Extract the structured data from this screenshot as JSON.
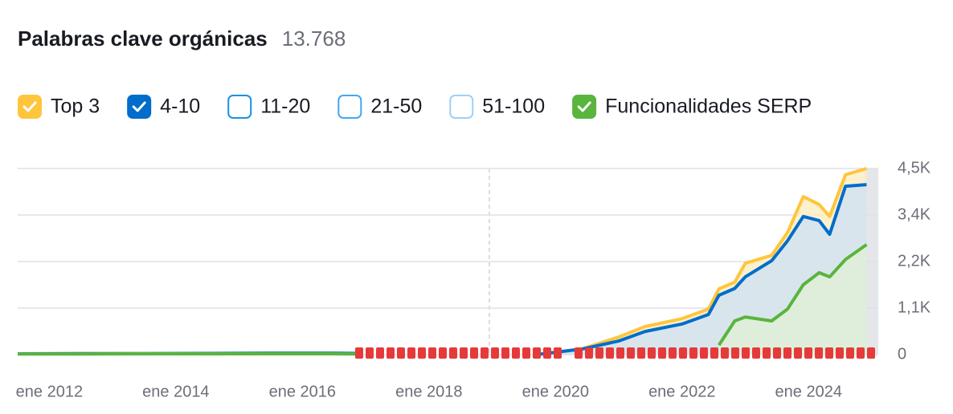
{
  "chart_data": {
    "type": "area",
    "title": "Palabras clave orgánicas",
    "subtitle": "13.768",
    "x": [
      "2011-07",
      "2012-07",
      "2013-07",
      "2014-07",
      "2015-07",
      "2016-07",
      "2016-12",
      "2017-06",
      "2019-10",
      "2020-06",
      "2021-01",
      "2021-06",
      "2022-01",
      "2022-06",
      "2022-08",
      "2022-11",
      "2023-01",
      "2023-06",
      "2023-09",
      "2023-12",
      "2024-03",
      "2024-05",
      "2024-08",
      "2024-12"
    ],
    "series": [
      {
        "name": "Top 3",
        "color": "#ffc53d",
        "checked": true,
        "values": [
          20,
          25,
          25,
          30,
          35,
          35,
          30,
          null,
          10,
          135,
          427,
          680,
          870,
          1100,
          1590,
          1750,
          2210,
          2400,
          2950,
          3820,
          3630,
          3340,
          4350,
          4500
        ]
      },
      {
        "name": "4-10",
        "color": "#006dca",
        "checked": true,
        "values": [
          20,
          25,
          25,
          30,
          35,
          35,
          30,
          null,
          10,
          135,
          330,
          560,
          740,
          970,
          1435,
          1600,
          1880,
          2270,
          2750,
          3340,
          3240,
          2910,
          4070,
          4110
        ]
      },
      {
        "name": "11-20",
        "color": "#1d8fe3",
        "checked": false
      },
      {
        "name": "21-50",
        "color": "#45a6f0",
        "checked": false
      },
      {
        "name": "51-100",
        "color": "#9fd0f7",
        "checked": false
      },
      {
        "name": "Funcionalidades SERP",
        "color": "#59b53d",
        "checked": true,
        "values": [
          15,
          15,
          20,
          20,
          20,
          20,
          15,
          null,
          null,
          null,
          null,
          null,
          null,
          null,
          230,
          815,
          910,
          815,
          1100,
          1690,
          1980,
          1880,
          2300,
          2660
        ]
      }
    ],
    "xlim": [
      "2011-07",
      "2025-01"
    ],
    "xticks": [
      {
        "value": "2012-01",
        "label": "ene 2012"
      },
      {
        "value": "2014-01",
        "label": "ene 2014"
      },
      {
        "value": "2016-01",
        "label": "ene 2016"
      },
      {
        "value": "2018-01",
        "label": "ene 2018"
      },
      {
        "value": "2020-01",
        "label": "ene 2020"
      },
      {
        "value": "2022-01",
        "label": "ene 2022"
      },
      {
        "value": "2024-01",
        "label": "ene 2024"
      }
    ],
    "ylim": [
      0,
      4500
    ],
    "yticks": [
      0,
      {
        "value": 1125,
        "label": "1,1K"
      },
      {
        "value": 2250,
        "label": "2,2K"
      },
      {
        "value": 3375,
        "label": "3,4K"
      },
      {
        "value": 4500,
        "label": "4,5K"
      }
    ],
    "grid": true
  }
}
